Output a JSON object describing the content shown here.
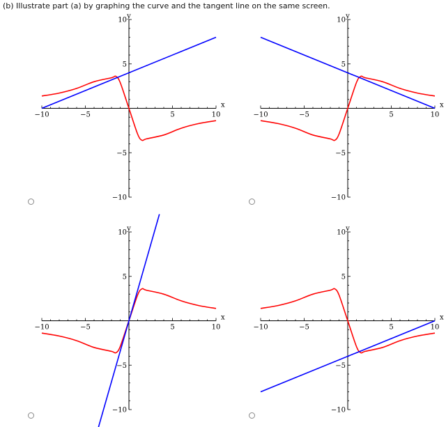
{
  "question": {
    "prompt": "(b) Illustrate part (a) by graphing the curve and the tangent line on the same screen."
  },
  "colors": {
    "curve": "#ff0000",
    "tangent": "#0000ff",
    "axis": "#000000"
  },
  "options": [
    {
      "id": "option-1",
      "selected": false
    },
    {
      "id": "option-2",
      "selected": false
    },
    {
      "id": "option-3",
      "selected": false
    },
    {
      "id": "option-4",
      "selected": false
    }
  ],
  "chart_data": [
    {
      "type": "line",
      "xlabel": "x",
      "ylabel": "y",
      "xlim": [
        -10,
        10
      ],
      "ylim": [
        -10,
        10
      ],
      "xticks": [
        "-10",
        "-5",
        "5",
        "10"
      ],
      "yticks": [
        "10",
        "5",
        "-5",
        "-10"
      ],
      "grid": false,
      "series": [
        {
          "kind": "curve",
          "x": [
            -10,
            -8,
            -6,
            -4,
            -2,
            -1.5,
            -1,
            0,
            1,
            1.5,
            2,
            4,
            6,
            8,
            10
          ],
          "y": [
            1.39,
            1.72,
            2.24,
            3.0,
            3.44,
            3.6,
            2.9,
            0,
            -2.9,
            -3.6,
            -3.44,
            -3.0,
            -2.24,
            -1.72,
            -1.39
          ]
        },
        {
          "kind": "tangent",
          "x": [
            -10,
            10
          ],
          "y": [
            0,
            8
          ]
        }
      ]
    },
    {
      "type": "line",
      "xlabel": "x",
      "ylabel": "y",
      "xlim": [
        -10,
        10
      ],
      "ylim": [
        -10,
        10
      ],
      "xticks": [
        "-10",
        "-5",
        "5",
        "10"
      ],
      "yticks": [
        "10",
        "5",
        "-5",
        "-10"
      ],
      "grid": false,
      "series": [
        {
          "kind": "curve",
          "x": [
            -10,
            -8,
            -6,
            -4,
            -2,
            -1.5,
            -1,
            0,
            1,
            1.5,
            2,
            4,
            6,
            8,
            10
          ],
          "y": [
            -1.39,
            -1.72,
            -2.24,
            -3.0,
            -3.44,
            -3.6,
            -2.9,
            0,
            2.9,
            3.6,
            3.44,
            3.0,
            2.24,
            1.72,
            1.39
          ]
        },
        {
          "kind": "tangent",
          "x": [
            -10,
            10
          ],
          "y": [
            8,
            0
          ]
        }
      ]
    },
    {
      "type": "line",
      "xlabel": "x",
      "ylabel": "y",
      "xlim": [
        -10,
        10
      ],
      "ylim": [
        -10,
        10
      ],
      "xticks": [
        "-10",
        "-5",
        "5",
        "10"
      ],
      "yticks": [
        "10",
        "5",
        "-5",
        "-10"
      ],
      "grid": false,
      "series": [
        {
          "kind": "curve",
          "x": [
            -10,
            -8,
            -6,
            -4,
            -2,
            -1.5,
            -1,
            0,
            1,
            1.5,
            2,
            4,
            6,
            8,
            10
          ],
          "y": [
            -1.39,
            -1.72,
            -2.24,
            -3.0,
            -3.44,
            -3.6,
            -2.9,
            0,
            2.9,
            3.6,
            3.44,
            3.0,
            2.24,
            1.72,
            1.39
          ]
        },
        {
          "kind": "tangent",
          "x": [
            -3.5,
            3.5
          ],
          "y": [
            -12,
            12
          ]
        }
      ]
    },
    {
      "type": "line",
      "xlabel": "x",
      "ylabel": "y",
      "xlim": [
        -10,
        10
      ],
      "ylim": [
        -10,
        10
      ],
      "xticks": [
        "-10",
        "-5",
        "5",
        "10"
      ],
      "yticks": [
        "10",
        "5",
        "-5",
        "-10"
      ],
      "grid": false,
      "series": [
        {
          "kind": "curve",
          "x": [
            -10,
            -8,
            -6,
            -4,
            -2,
            -1.5,
            -1,
            0,
            1,
            1.5,
            2,
            4,
            6,
            8,
            10
          ],
          "y": [
            1.39,
            1.72,
            2.24,
            3.0,
            3.44,
            3.6,
            2.9,
            0,
            -2.9,
            -3.6,
            -3.44,
            -3.0,
            -2.24,
            -1.72,
            -1.39
          ]
        },
        {
          "kind": "tangent",
          "x": [
            -10,
            10
          ],
          "y": [
            -8,
            0
          ]
        }
      ]
    }
  ]
}
